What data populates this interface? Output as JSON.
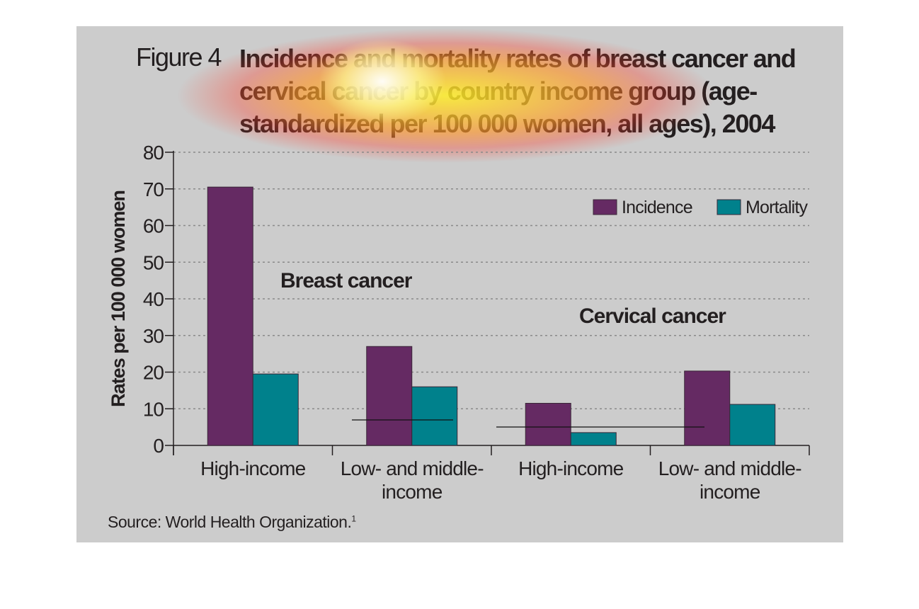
{
  "figure": {
    "label": "Figure 4",
    "title": "Incidence and mortality rates of breast cancer and cervical cancer by country income group (age-standardized per 100 000 women, all ages), 2004",
    "source": "Source: World Health Organization.",
    "source_note": "1"
  },
  "colors": {
    "panel": "#cccccc",
    "incidence": "#652a63",
    "mortality": "#00818c",
    "text": "#231f20"
  },
  "chart_data": {
    "type": "bar",
    "title": "Incidence and mortality rates of breast cancer and cervical cancer by country income group (age-standardized per 100 000 women, all ages), 2004",
    "ylabel": "Rates per 100 000 women",
    "ylim": [
      0,
      80
    ],
    "yticks": [
      0,
      10,
      20,
      30,
      40,
      50,
      60,
      70,
      80
    ],
    "grid": true,
    "legend": "top-right",
    "groups": [
      "Breast cancer",
      "Cervical cancer"
    ],
    "categories": [
      "High-income",
      "Low- and middle-income",
      "High-income",
      "Low- and middle-income"
    ],
    "category_lines": [
      [
        "High-income"
      ],
      [
        "Low- and middle-",
        "income"
      ],
      [
        "High-income"
      ],
      [
        "Low- and middle-",
        "income"
      ]
    ],
    "series": [
      {
        "name": "Incidence",
        "color": "#652a63",
        "values": [
          70.5,
          27,
          11.5,
          20.3
        ]
      },
      {
        "name": "Mortality",
        "color": "#00818c",
        "values": [
          19.5,
          16,
          3.5,
          11.2
        ]
      }
    ]
  }
}
